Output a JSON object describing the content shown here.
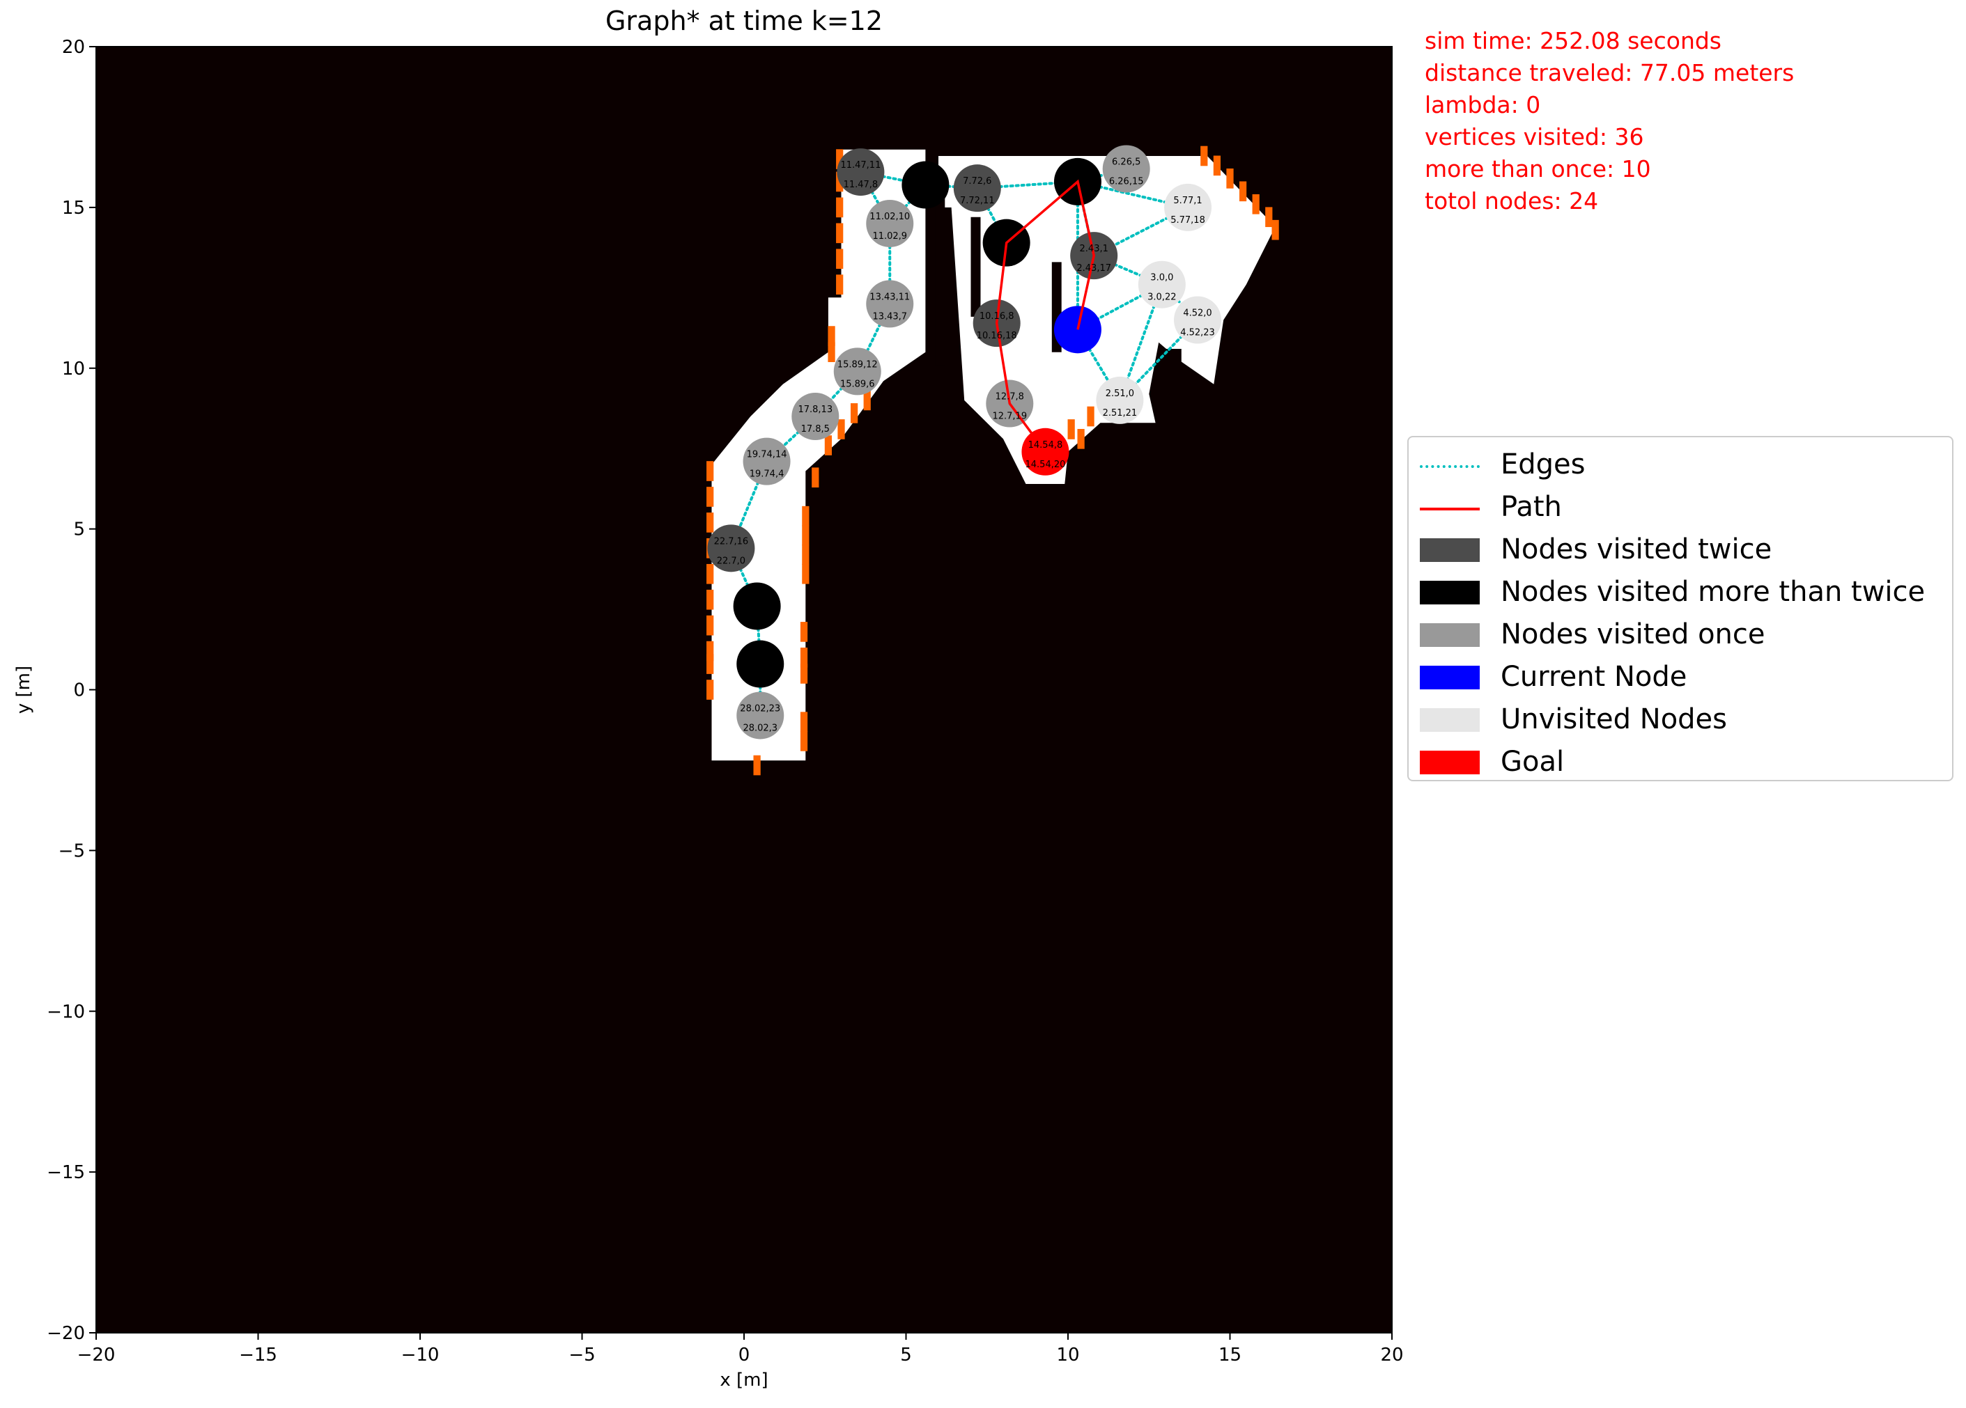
{
  "title": "Graph* at time k=12",
  "stats": [
    "sim time: 252.08 seconds",
    "distance traveled: 77.05 meters",
    "lambda: 0",
    "vertices visited: 36",
    "more than once: 10",
    "totol nodes: 24"
  ],
  "colors": {
    "background": "#0b0000",
    "free": "#ffffff",
    "frontier": "#ff6600",
    "edge": "#00bfbf",
    "path": "#ff0000",
    "twice": "#4c4c4c",
    "more_than_twice": "#000000",
    "once": "#999999",
    "current": "#0000ff",
    "unvisited": "#e6e6e6",
    "goal": "#ff0000"
  },
  "legend": [
    {
      "label": "Edges",
      "kind": "dotted-line",
      "color": "#00bfbf"
    },
    {
      "label": "Path",
      "kind": "line",
      "color": "#ff0000"
    },
    {
      "label": "Nodes visited twice",
      "kind": "patch",
      "color": "#4c4c4c"
    },
    {
      "label": "Nodes visited more than twice",
      "kind": "patch",
      "color": "#000000"
    },
    {
      "label": "Nodes visited once",
      "kind": "patch",
      "color": "#999999"
    },
    {
      "label": "Current Node",
      "kind": "patch",
      "color": "#0000ff"
    },
    {
      "label": "Unvisited Nodes",
      "kind": "patch",
      "color": "#e6e6e6"
    },
    {
      "label": "Goal",
      "kind": "patch",
      "color": "#ff0000"
    }
  ],
  "chart_data": {
    "type": "scatter",
    "title": "Graph* at time k=12",
    "xlabel": "x [m]",
    "ylabel": "y [m]",
    "xlim": [
      -20,
      20
    ],
    "ylim": [
      -20,
      20
    ],
    "xticks": [
      -20,
      -15,
      -10,
      -5,
      0,
      5,
      10,
      15,
      20
    ],
    "yticks": [
      -20,
      -15,
      -10,
      -5,
      0,
      5,
      10,
      15,
      20
    ],
    "free_space_polygons": [
      [
        [
          -1.0,
          -2.2
        ],
        [
          1.9,
          -2.2
        ],
        [
          1.9,
          6.8
        ],
        [
          3.0,
          7.8
        ],
        [
          4.3,
          9.6
        ],
        [
          5.6,
          10.5
        ],
        [
          5.6,
          16.8
        ],
        [
          3.0,
          16.8
        ],
        [
          3.0,
          12.2
        ],
        [
          2.6,
          12.2
        ],
        [
          2.6,
          10.5
        ],
        [
          1.2,
          9.5
        ],
        [
          0.2,
          8.5
        ],
        [
          -1.0,
          7.0
        ]
      ],
      [
        [
          6.0,
          16.6
        ],
        [
          14.3,
          16.6
        ],
        [
          16.4,
          14.4
        ],
        [
          15.5,
          12.6
        ],
        [
          14.8,
          11.5
        ],
        [
          14.5,
          9.5
        ],
        [
          13.5,
          10.2
        ],
        [
          12.8,
          10.8
        ],
        [
          12.5,
          9.2
        ],
        [
          12.7,
          8.3
        ],
        [
          11.0,
          8.3
        ],
        [
          10.0,
          7.4
        ],
        [
          9.9,
          6.4
        ],
        [
          8.7,
          6.4
        ],
        [
          8.0,
          7.8
        ],
        [
          6.8,
          9.0
        ],
        [
          6.4,
          15.0
        ],
        [
          6.0,
          15.0
        ]
      ]
    ],
    "obstacles": [
      [
        [
          5.9,
          10.1
        ],
        [
          6.2,
          10.1
        ],
        [
          6.2,
          15.4
        ],
        [
          5.9,
          15.4
        ]
      ],
      [
        [
          7.0,
          11.6
        ],
        [
          7.3,
          11.6
        ],
        [
          7.3,
          14.7
        ],
        [
          7.0,
          14.7
        ]
      ],
      [
        [
          9.5,
          10.5
        ],
        [
          9.8,
          10.5
        ],
        [
          9.8,
          13.3
        ],
        [
          9.5,
          13.3
        ]
      ],
      [
        [
          12.8,
          10.0
        ],
        [
          13.5,
          10.0
        ],
        [
          13.5,
          10.6
        ],
        [
          12.8,
          10.6
        ]
      ]
    ],
    "frontier_cells": [
      [
        -1.05,
        6.8
      ],
      [
        -1.05,
        6.0
      ],
      [
        -1.05,
        5.2
      ],
      [
        -1.05,
        4.4
      ],
      [
        -1.05,
        3.6
      ],
      [
        -1.05,
        2.8
      ],
      [
        -1.05,
        2.0
      ],
      [
        -1.05,
        1.2
      ],
      [
        -1.05,
        0.8
      ],
      [
        -1.05,
        0.0
      ],
      [
        1.85,
        1.8
      ],
      [
        1.85,
        1.0
      ],
      [
        1.85,
        0.5
      ],
      [
        1.85,
        -1.0
      ],
      [
        1.85,
        -1.6
      ],
      [
        0.4,
        -2.35
      ],
      [
        1.9,
        3.6
      ],
      [
        1.9,
        4.2
      ],
      [
        1.9,
        4.8
      ],
      [
        1.9,
        5.4
      ],
      [
        2.2,
        6.6
      ],
      [
        2.6,
        7.6
      ],
      [
        3.0,
        8.1
      ],
      [
        3.4,
        8.6
      ],
      [
        3.8,
        9.0
      ],
      [
        2.95,
        12.6
      ],
      [
        2.95,
        13.4
      ],
      [
        2.95,
        14.2
      ],
      [
        2.95,
        15.0
      ],
      [
        2.95,
        15.8
      ],
      [
        2.95,
        16.5
      ],
      [
        2.7,
        11.0
      ],
      [
        2.7,
        10.5
      ],
      [
        10.1,
        8.1
      ],
      [
        10.4,
        7.8
      ],
      [
        10.7,
        8.5
      ],
      [
        11.1,
        9.0
      ],
      [
        14.2,
        16.6
      ],
      [
        14.6,
        16.3
      ],
      [
        15.0,
        15.9
      ],
      [
        15.4,
        15.5
      ],
      [
        15.8,
        15.1
      ],
      [
        16.2,
        14.7
      ],
      [
        16.4,
        14.3
      ]
    ],
    "nodes": [
      {
        "x": 3.6,
        "y": 16.1,
        "state": "twice",
        "labels": [
          "11.47,11",
          "11.47,8"
        ]
      },
      {
        "x": 5.6,
        "y": 15.7,
        "state": "more_than_twice",
        "labels": []
      },
      {
        "x": 7.2,
        "y": 15.6,
        "state": "twice",
        "labels": [
          "7.72,6",
          "7.72,11"
        ]
      },
      {
        "x": 10.3,
        "y": 15.8,
        "state": "more_than_twice",
        "labels": []
      },
      {
        "x": 11.8,
        "y": 16.2,
        "state": "once",
        "labels": [
          "6.26,5",
          "6.26,15"
        ]
      },
      {
        "x": 13.7,
        "y": 15.0,
        "state": "unvisited",
        "labels": [
          "5.77,1",
          "5.77,18"
        ]
      },
      {
        "x": 4.5,
        "y": 14.5,
        "state": "once",
        "labels": [
          "11.02,10",
          "11.02,9"
        ]
      },
      {
        "x": 8.1,
        "y": 13.9,
        "state": "more_than_twice",
        "labels": []
      },
      {
        "x": 10.8,
        "y": 13.5,
        "state": "twice",
        "labels": [
          "2.43,1",
          "2.43,17"
        ]
      },
      {
        "x": 12.9,
        "y": 12.6,
        "state": "unvisited",
        "labels": [
          "3.0,0",
          "3.0,22"
        ]
      },
      {
        "x": 4.5,
        "y": 12.0,
        "state": "once",
        "labels": [
          "13.43,11",
          "13.43,7"
        ]
      },
      {
        "x": 7.8,
        "y": 11.4,
        "state": "twice",
        "labels": [
          "10.16,8",
          "10.16,18"
        ]
      },
      {
        "x": 10.3,
        "y": 11.2,
        "state": "current",
        "labels": []
      },
      {
        "x": 14.0,
        "y": 11.5,
        "state": "unvisited",
        "labels": [
          "4.52,0",
          "4.52,23"
        ]
      },
      {
        "x": 3.5,
        "y": 9.9,
        "state": "once",
        "labels": [
          "15.89,12",
          "15.89,6"
        ]
      },
      {
        "x": 8.2,
        "y": 8.9,
        "state": "once",
        "labels": [
          "12.7,8",
          "12.7,19"
        ]
      },
      {
        "x": 11.6,
        "y": 9.0,
        "state": "unvisited",
        "labels": [
          "2.51,0",
          "2.51,21"
        ]
      },
      {
        "x": 2.2,
        "y": 8.5,
        "state": "once",
        "labels": [
          "17.8,13",
          "17.8,5"
        ]
      },
      {
        "x": 9.3,
        "y": 7.4,
        "state": "goal",
        "labels": [
          "14.54,8",
          "14.54,20"
        ]
      },
      {
        "x": 0.7,
        "y": 7.1,
        "state": "once",
        "labels": [
          "19.74,14",
          "19.74,4"
        ]
      },
      {
        "x": -0.4,
        "y": 4.4,
        "state": "twice",
        "labels": [
          "22.7,16",
          "22.7,0"
        ]
      },
      {
        "x": 0.4,
        "y": 2.6,
        "state": "more_than_twice",
        "labels": []
      },
      {
        "x": 0.5,
        "y": 0.8,
        "state": "more_than_twice",
        "labels": []
      },
      {
        "x": 0.5,
        "y": -0.8,
        "state": "once",
        "labels": [
          "28.02,23",
          "28.02,3"
        ]
      }
    ],
    "edges": [
      [
        0,
        1
      ],
      [
        1,
        2
      ],
      [
        2,
        3
      ],
      [
        3,
        4
      ],
      [
        3,
        5
      ],
      [
        1,
        6
      ],
      [
        0,
        6
      ],
      [
        6,
        10
      ],
      [
        10,
        14
      ],
      [
        14,
        17
      ],
      [
        17,
        19
      ],
      [
        19,
        20
      ],
      [
        20,
        21
      ],
      [
        21,
        22
      ],
      [
        22,
        23
      ],
      [
        2,
        7
      ],
      [
        3,
        8
      ],
      [
        8,
        9
      ],
      [
        9,
        12
      ],
      [
        9,
        13
      ],
      [
        9,
        16
      ],
      [
        12,
        16
      ],
      [
        13,
        16
      ],
      [
        5,
        8
      ],
      [
        3,
        12
      ]
    ],
    "path": [
      [
        10.3,
        11.2
      ],
      [
        10.8,
        13.5
      ],
      [
        10.3,
        15.8
      ],
      [
        8.1,
        13.9
      ],
      [
        7.8,
        11.4
      ],
      [
        8.2,
        8.9
      ],
      [
        9.3,
        7.4
      ]
    ]
  }
}
